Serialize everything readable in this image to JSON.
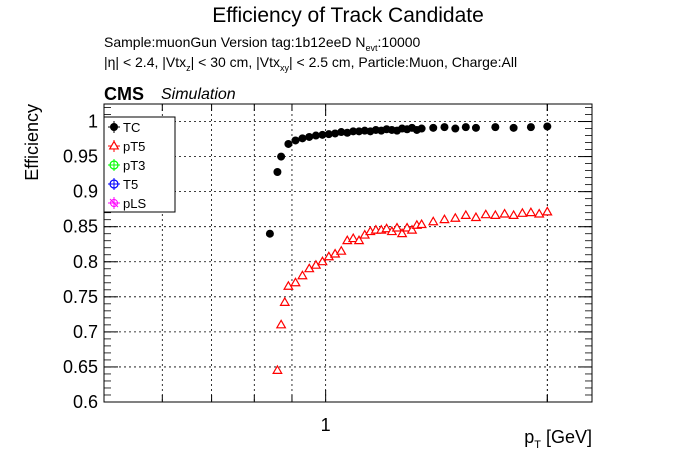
{
  "title": "Efficiency of Track Candidate",
  "info": {
    "line1": {
      "a": "Sample:muonGun   Version tag:1b12eeD  N",
      "sub": "evt",
      "b": ":10000"
    },
    "line2": {
      "a": "|η| < 2.4, |Vtx",
      "sub1": "z",
      "b": "| < 30 cm, |Vtx",
      "sub2": "xy",
      "c": "| < 2.5 cm, Particle:Muon, Charge:All"
    }
  },
  "cms_label": "CMS",
  "simulation_label": "Simulation",
  "colors": {
    "TC": "#000000",
    "pT5": "#ff0000",
    "pT3": "#00ff00",
    "T5": "#0000ff",
    "pLS": "#ff00ff"
  },
  "chart_data": {
    "type": "scatter",
    "xscale": "log",
    "xlabel": "p",
    "xlabel_sub": "T",
    "xlabel_unit": " [GeV]",
    "ylabel": "Efficiency",
    "xlim": [
      0.5,
      2.3
    ],
    "ylim": [
      0.6,
      1.025
    ],
    "x_ticklabels": [
      {
        "value": 1,
        "label": "1"
      }
    ],
    "y_ticks": [
      0.6,
      0.65,
      0.7,
      0.75,
      0.8,
      0.85,
      0.9,
      0.95,
      1
    ],
    "y_ticklabels": [
      "0.6",
      "0.65",
      "0.7",
      "0.75",
      "0.8",
      "0.85",
      "0.9",
      "0.95",
      "1"
    ],
    "grid": true,
    "legend": {
      "position": "top-left",
      "entries": [
        "TC",
        "pT5",
        "pT3",
        "T5",
        "pLS"
      ]
    },
    "series": [
      {
        "name": "TC",
        "marker": "filled-circle",
        "x": [
          0.84,
          0.86,
          0.87,
          0.89,
          0.91,
          0.93,
          0.95,
          0.97,
          0.99,
          1.01,
          1.03,
          1.05,
          1.07,
          1.09,
          1.11,
          1.13,
          1.15,
          1.17,
          1.19,
          1.21,
          1.23,
          1.25,
          1.27,
          1.29,
          1.31,
          1.33,
          1.35,
          1.4,
          1.45,
          1.5,
          1.55,
          1.6,
          1.7,
          1.8,
          1.9,
          2.0
        ],
        "values": [
          0.84,
          0.928,
          0.95,
          0.968,
          0.973,
          0.976,
          0.978,
          0.98,
          0.981,
          0.982,
          0.983,
          0.985,
          0.984,
          0.986,
          0.986,
          0.987,
          0.986,
          0.988,
          0.987,
          0.989,
          0.988,
          0.987,
          0.99,
          0.989,
          0.991,
          0.988,
          0.99,
          0.991,
          0.992,
          0.99,
          0.992,
          0.991,
          0.992,
          0.991,
          0.992,
          0.993
        ]
      },
      {
        "name": "pT5",
        "marker": "open-triangle",
        "x": [
          0.86,
          0.87,
          0.88,
          0.89,
          0.91,
          0.93,
          0.95,
          0.97,
          0.99,
          1.01,
          1.03,
          1.05,
          1.07,
          1.09,
          1.11,
          1.13,
          1.15,
          1.17,
          1.19,
          1.21,
          1.23,
          1.25,
          1.27,
          1.29,
          1.31,
          1.33,
          1.35,
          1.4,
          1.45,
          1.5,
          1.55,
          1.6,
          1.65,
          1.7,
          1.75,
          1.8,
          1.85,
          1.9,
          1.95,
          2.0
        ],
        "values": [
          0.645,
          0.71,
          0.742,
          0.765,
          0.77,
          0.78,
          0.79,
          0.795,
          0.8,
          0.807,
          0.811,
          0.815,
          0.83,
          0.833,
          0.83,
          0.838,
          0.843,
          0.845,
          0.845,
          0.847,
          0.843,
          0.848,
          0.84,
          0.848,
          0.845,
          0.852,
          0.853,
          0.857,
          0.86,
          0.862,
          0.866,
          0.863,
          0.867,
          0.866,
          0.868,
          0.866,
          0.869,
          0.87,
          0.868,
          0.871
        ]
      },
      {
        "name": "pT3",
        "marker": "open-circle",
        "x": [],
        "values": []
      },
      {
        "name": "T5",
        "marker": "open-circle",
        "x": [],
        "values": []
      },
      {
        "name": "pLS",
        "marker": "open-star",
        "x": [],
        "values": []
      }
    ]
  }
}
